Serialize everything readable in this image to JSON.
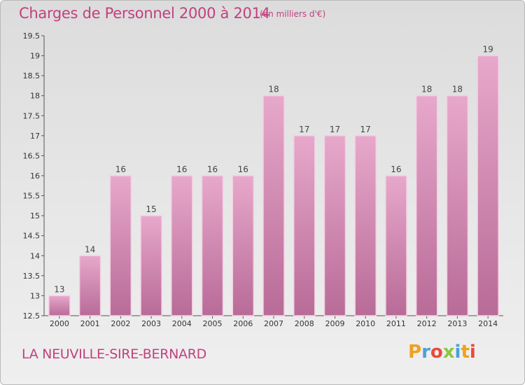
{
  "header": {
    "title": "Charges de Personnel 2000 à 2014",
    "unit": "(en milliers d'€)"
  },
  "footer": {
    "commune": "LA NEUVILLE-SIRE-BERNARD",
    "logo_letters": [
      "P",
      "r",
      "o",
      "x",
      "i",
      "t",
      "i"
    ],
    "logo_colors": [
      "#f0a020",
      "#4aa0d8",
      "#e84a3a",
      "#8cc63f",
      "#4aa0d8",
      "#f0a020",
      "#e84a3a"
    ]
  },
  "colors": {
    "title": "#c2407f",
    "bar_top": "#e7a8cb",
    "bar_bottom": "#b86b97",
    "bar_edge": "#f4cfe2"
  },
  "chart_data": {
    "type": "bar",
    "title": "Charges de Personnel 2000 à 2014",
    "subtitle": "(en milliers d'€)",
    "categories": [
      "2000",
      "2001",
      "2002",
      "2003",
      "2004",
      "2005",
      "2006",
      "2007",
      "2008",
      "2009",
      "2010",
      "2011",
      "2012",
      "2013",
      "2014"
    ],
    "values": [
      13,
      14,
      16,
      15,
      16,
      16,
      16,
      18,
      17,
      17,
      17,
      16,
      18,
      18,
      19
    ],
    "value_labels": [
      "13",
      "14",
      "16",
      "15",
      "16",
      "16",
      "16",
      "18",
      "17",
      "17",
      "17",
      "16",
      "18",
      "18",
      "19"
    ],
    "ylim": [
      12.5,
      19.5
    ],
    "yticks": [
      12.5,
      13,
      13.5,
      14,
      14.5,
      15,
      15.5,
      16,
      16.5,
      17,
      17.5,
      18,
      18.5,
      19,
      19.5
    ],
    "ytick_labels": [
      "12.5",
      "13",
      "13.5",
      "14",
      "14.5",
      "15",
      "15.5",
      "16",
      "16.5",
      "17",
      "17.5",
      "18",
      "18.5",
      "19",
      "19.5"
    ],
    "grid": false,
    "xlabel": "",
    "ylabel": ""
  }
}
